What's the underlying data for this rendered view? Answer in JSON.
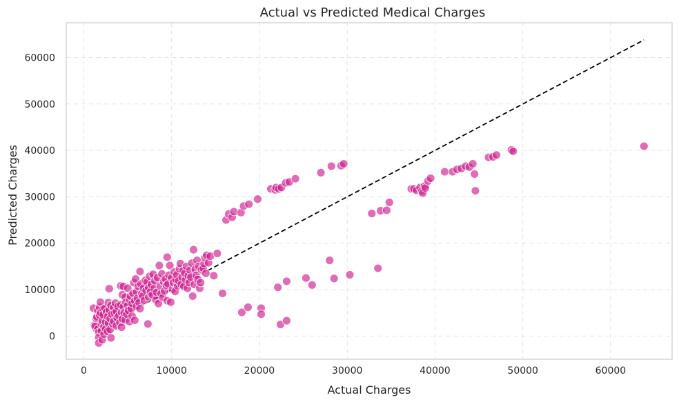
{
  "chart_data": {
    "type": "scatter",
    "title": "Actual vs Predicted Medical Charges",
    "xlabel": "Actual Charges",
    "ylabel": "Predicted Charges",
    "xlim": [
      -2000,
      67000
    ],
    "ylim": [
      -5000,
      67500
    ],
    "xticks": [
      0,
      10000,
      20000,
      30000,
      40000,
      50000,
      60000
    ],
    "yticks": [
      0,
      10000,
      20000,
      30000,
      40000,
      50000,
      60000
    ],
    "xtick_labels": [
      "0",
      "10000",
      "20000",
      "30000",
      "40000",
      "50000",
      "60000"
    ],
    "ytick_labels": [
      "0",
      "10000",
      "20000",
      "30000",
      "40000",
      "50000",
      "60000"
    ],
    "grid": true,
    "point_color": "#cc1f8f",
    "line_color": "#000000",
    "reference_line": {
      "x": [
        1100,
        63800
      ],
      "y": [
        1100,
        63800
      ]
    },
    "series": [
      {
        "points": [
          [
            1100,
            6000
          ],
          [
            1200,
            2300
          ],
          [
            1300,
            2100
          ],
          [
            1400,
            3800
          ],
          [
            1500,
            4100
          ],
          [
            1600,
            1500
          ],
          [
            1600,
            5500
          ],
          [
            1700,
            800
          ],
          [
            1700,
            -300
          ],
          [
            1700,
            -1500
          ],
          [
            1800,
            6200
          ],
          [
            1800,
            4500
          ],
          [
            1900,
            7300
          ],
          [
            1900,
            5000
          ],
          [
            2000,
            2600
          ],
          [
            2000,
            1100
          ],
          [
            2100,
            -800
          ],
          [
            2100,
            3300
          ],
          [
            2200,
            5800
          ],
          [
            2200,
            4600
          ],
          [
            2300,
            2000
          ],
          [
            2300,
            400
          ],
          [
            2400,
            6000
          ],
          [
            2500,
            3000
          ],
          [
            2500,
            1500
          ],
          [
            2600,
            5200
          ],
          [
            2700,
            4200
          ],
          [
            2700,
            1000
          ],
          [
            2800,
            7200
          ],
          [
            2800,
            2800
          ],
          [
            2900,
            10200
          ],
          [
            2900,
            5600
          ],
          [
            3000,
            3800
          ],
          [
            3000,
            1400
          ],
          [
            3100,
            6600
          ],
          [
            3100,
            -400
          ],
          [
            3200,
            4700
          ],
          [
            3300,
            2600
          ],
          [
            3400,
            6100
          ],
          [
            3400,
            3200
          ],
          [
            3500,
            4900
          ],
          [
            3600,
            7100
          ],
          [
            3700,
            2200
          ],
          [
            3700,
            5300
          ],
          [
            3800,
            3900
          ],
          [
            3900,
            6400
          ],
          [
            4000,
            4400
          ],
          [
            4100,
            2900
          ],
          [
            4200,
            10800
          ],
          [
            4200,
            6700
          ],
          [
            4300,
            5100
          ],
          [
            4300,
            1900
          ],
          [
            4400,
            8900
          ],
          [
            4400,
            3700
          ],
          [
            4500,
            6300
          ],
          [
            4500,
            10700
          ],
          [
            4600,
            5000
          ],
          [
            4700,
            8400
          ],
          [
            4700,
            3500
          ],
          [
            4800,
            7300
          ],
          [
            4900,
            4700
          ],
          [
            5000,
            6600
          ],
          [
            5000,
            10300
          ],
          [
            5100,
            5500
          ],
          [
            5200,
            7900
          ],
          [
            5200,
            3100
          ],
          [
            5300,
            8600
          ],
          [
            5400,
            5900
          ],
          [
            5500,
            7000
          ],
          [
            5500,
            4300
          ],
          [
            5600,
            9200
          ],
          [
            5700,
            11500
          ],
          [
            5800,
            3400
          ],
          [
            5800,
            7600
          ],
          [
            5900,
            12300
          ],
          [
            6000,
            6400
          ],
          [
            6000,
            9500
          ],
          [
            6100,
            8100
          ],
          [
            6200,
            10700
          ],
          [
            6300,
            7200
          ],
          [
            6400,
            13900
          ],
          [
            6400,
            5900
          ],
          [
            6500,
            11200
          ],
          [
            6600,
            9100
          ],
          [
            6700,
            8600
          ],
          [
            6800,
            10300
          ],
          [
            6900,
            7700
          ],
          [
            7000,
            12000
          ],
          [
            7100,
            9800
          ],
          [
            7200,
            11600
          ],
          [
            7300,
            2600
          ],
          [
            7400,
            8400
          ],
          [
            7400,
            10400
          ],
          [
            7500,
            12900
          ],
          [
            7600,
            9500
          ],
          [
            7700,
            11100
          ],
          [
            7800,
            8900
          ],
          [
            7900,
            13300
          ],
          [
            8000,
            10200
          ],
          [
            8100,
            11900
          ],
          [
            8200,
            7800
          ],
          [
            8300,
            9400
          ],
          [
            8400,
            12600
          ],
          [
            8500,
            7000
          ],
          [
            8600,
            15200
          ],
          [
            8700,
            10800
          ],
          [
            8800,
            9100
          ],
          [
            8900,
            13400
          ],
          [
            9000,
            8300
          ],
          [
            9100,
            11700
          ],
          [
            9200,
            9700
          ],
          [
            9300,
            12300
          ],
          [
            9400,
            10900
          ],
          [
            9500,
            17000
          ],
          [
            9500,
            7600
          ],
          [
            9600,
            11200
          ],
          [
            9700,
            13100
          ],
          [
            9800,
            15200
          ],
          [
            9900,
            7300
          ],
          [
            10000,
            12500
          ],
          [
            10100,
            10100
          ],
          [
            10200,
            11500
          ],
          [
            10300,
            13800
          ],
          [
            10400,
            9600
          ],
          [
            10500,
            12200
          ],
          [
            10600,
            13200
          ],
          [
            10700,
            10800
          ],
          [
            10800,
            11900
          ],
          [
            10900,
            14500
          ],
          [
            11000,
            15600
          ],
          [
            11100,
            11100
          ],
          [
            11200,
            12700
          ],
          [
            11300,
            14100
          ],
          [
            11400,
            10700
          ],
          [
            11500,
            13500
          ],
          [
            11600,
            12100
          ],
          [
            11700,
            15000
          ],
          [
            11800,
            10300
          ],
          [
            11900,
            13000
          ],
          [
            12000,
            11500
          ],
          [
            12100,
            14200
          ],
          [
            12200,
            12700
          ],
          [
            12300,
            15700
          ],
          [
            12400,
            8600
          ],
          [
            12500,
            18600
          ],
          [
            12600,
            11100
          ],
          [
            12700,
            14400
          ],
          [
            12800,
            13100
          ],
          [
            12900,
            16300
          ],
          [
            13000,
            12200
          ],
          [
            13100,
            15000
          ],
          [
            13200,
            10300
          ],
          [
            13300,
            11500
          ],
          [
            13400,
            14300
          ],
          [
            13600,
            14600
          ],
          [
            13700,
            15600
          ],
          [
            13800,
            16900
          ],
          [
            13900,
            13500
          ],
          [
            14000,
            17400
          ],
          [
            14200,
            15800
          ],
          [
            14400,
            17200
          ],
          [
            14800,
            13000
          ],
          [
            15200,
            17800
          ],
          [
            15800,
            9200
          ],
          [
            16200,
            25000
          ],
          [
            16500,
            26300
          ],
          [
            16900,
            25600
          ],
          [
            17100,
            26800
          ],
          [
            17900,
            26600
          ],
          [
            18000,
            5100
          ],
          [
            18200,
            28000
          ],
          [
            18800,
            28400
          ],
          [
            18700,
            6200
          ],
          [
            19800,
            29500
          ],
          [
            20200,
            6000
          ],
          [
            20200,
            4700
          ],
          [
            21300,
            31700
          ],
          [
            21800,
            31500
          ],
          [
            21900,
            32000
          ],
          [
            22100,
            10500
          ],
          [
            22200,
            31700
          ],
          [
            22400,
            2500
          ],
          [
            22500,
            32000
          ],
          [
            23000,
            33000
          ],
          [
            23100,
            11800
          ],
          [
            23100,
            3300
          ],
          [
            23400,
            33200
          ],
          [
            24100,
            33900
          ],
          [
            25300,
            12500
          ],
          [
            26000,
            11000
          ],
          [
            27000,
            35200
          ],
          [
            28000,
            16300
          ],
          [
            28200,
            36600
          ],
          [
            28500,
            12400
          ],
          [
            29300,
            36700
          ],
          [
            29600,
            37100
          ],
          [
            30300,
            13200
          ],
          [
            32800,
            26400
          ],
          [
            33500,
            14600
          ],
          [
            33800,
            27000
          ],
          [
            34500,
            27100
          ],
          [
            34800,
            28800
          ],
          [
            37300,
            31700
          ],
          [
            37600,
            31700
          ],
          [
            37900,
            31400
          ],
          [
            38300,
            32000
          ],
          [
            38500,
            31200
          ],
          [
            38600,
            30800
          ],
          [
            38800,
            32300
          ],
          [
            38900,
            31900
          ],
          [
            39200,
            33400
          ],
          [
            39500,
            34000
          ],
          [
            41100,
            35400
          ],
          [
            42000,
            35400
          ],
          [
            42500,
            35900
          ],
          [
            43000,
            36100
          ],
          [
            43500,
            36600
          ],
          [
            43900,
            36400
          ],
          [
            44300,
            37100
          ],
          [
            44500,
            34900
          ],
          [
            44600,
            31300
          ],
          [
            46100,
            38500
          ],
          [
            46600,
            38600
          ],
          [
            47000,
            39000
          ],
          [
            48700,
            40100
          ],
          [
            48900,
            39800
          ],
          [
            63800,
            40900
          ]
        ]
      }
    ]
  }
}
